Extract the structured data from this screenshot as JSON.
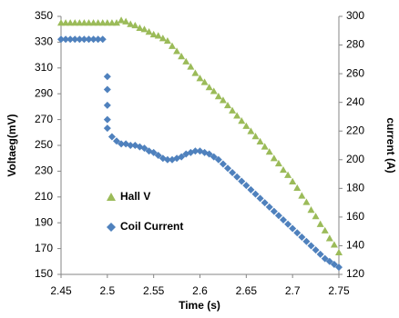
{
  "chart_data": {
    "type": "scatter",
    "xlabel": "Time (s)",
    "ylabel": "Voltaeg(mV)",
    "y2label": "current (A)",
    "xlim": [
      2.45,
      2.75
    ],
    "xticks": [
      2.45,
      2.5,
      2.55,
      2.6,
      2.65,
      2.7,
      2.75
    ],
    "ylim": [
      150,
      350
    ],
    "yticks": [
      150,
      170,
      190,
      210,
      230,
      250,
      270,
      290,
      310,
      330,
      350
    ],
    "y2lim": [
      120,
      300
    ],
    "y2ticks": [
      120,
      140,
      160,
      180,
      200,
      220,
      240,
      260,
      280,
      300
    ],
    "grid": false,
    "legend": "left",
    "series": [
      {
        "name": "Hall V",
        "color": "#9bbb59",
        "marker": "triangle",
        "axis": "y",
        "x": [
          2.45,
          2.455,
          2.46,
          2.465,
          2.47,
          2.475,
          2.48,
          2.485,
          2.49,
          2.495,
          2.5,
          2.505,
          2.51,
          2.515,
          2.52,
          2.525,
          2.53,
          2.535,
          2.54,
          2.545,
          2.55,
          2.555,
          2.56,
          2.565,
          2.57,
          2.575,
          2.58,
          2.585,
          2.59,
          2.595,
          2.6,
          2.605,
          2.61,
          2.615,
          2.62,
          2.625,
          2.63,
          2.635,
          2.64,
          2.645,
          2.65,
          2.655,
          2.66,
          2.665,
          2.67,
          2.675,
          2.68,
          2.685,
          2.69,
          2.695,
          2.7,
          2.705,
          2.71,
          2.715,
          2.72,
          2.725,
          2.73,
          2.735,
          2.74,
          2.745,
          2.75
        ],
        "values": [
          345,
          345,
          345,
          345,
          345,
          345,
          345,
          345,
          345,
          345,
          345,
          345,
          345,
          347,
          346,
          344,
          343,
          341,
          340,
          338,
          336,
          335,
          333,
          331,
          327,
          323,
          319,
          315,
          311,
          306,
          302,
          299,
          295,
          292,
          288,
          285,
          281,
          277,
          273,
          269,
          265,
          261,
          257,
          253,
          249,
          245,
          240,
          236,
          231,
          227,
          222,
          217,
          211,
          206,
          200,
          195,
          189,
          184,
          178,
          173,
          167
        ]
      },
      {
        "name": "Coil Current",
        "color": "#4f81bd",
        "marker": "diamond",
        "axis": "y2",
        "x": [
          2.45,
          2.455,
          2.46,
          2.465,
          2.47,
          2.475,
          2.48,
          2.485,
          2.49,
          2.495,
          2.5,
          2.5,
          2.5,
          2.5,
          2.5,
          2.505,
          2.51,
          2.515,
          2.52,
          2.525,
          2.53,
          2.535,
          2.54,
          2.545,
          2.55,
          2.555,
          2.56,
          2.565,
          2.57,
          2.575,
          2.58,
          2.585,
          2.59,
          2.595,
          2.6,
          2.605,
          2.61,
          2.615,
          2.62,
          2.625,
          2.63,
          2.635,
          2.64,
          2.645,
          2.65,
          2.655,
          2.66,
          2.665,
          2.67,
          2.675,
          2.68,
          2.685,
          2.69,
          2.695,
          2.7,
          2.705,
          2.71,
          2.715,
          2.72,
          2.725,
          2.73,
          2.735,
          2.74,
          2.745,
          2.75
        ],
        "values": [
          284,
          284,
          284,
          284,
          284,
          284,
          284,
          284,
          284,
          284,
          258,
          249,
          238,
          228,
          222,
          216,
          213,
          211,
          211,
          210,
          210,
          209,
          208,
          206,
          205,
          203,
          201,
          200,
          200,
          201,
          202,
          204,
          205,
          206,
          206,
          205,
          204,
          202,
          200,
          197,
          194,
          191,
          188,
          185,
          182,
          179,
          176,
          173,
          170,
          167,
          164,
          161,
          158,
          155,
          152,
          149,
          146,
          143,
          140,
          137,
          134,
          131,
          129,
          127,
          125
        ]
      }
    ]
  }
}
